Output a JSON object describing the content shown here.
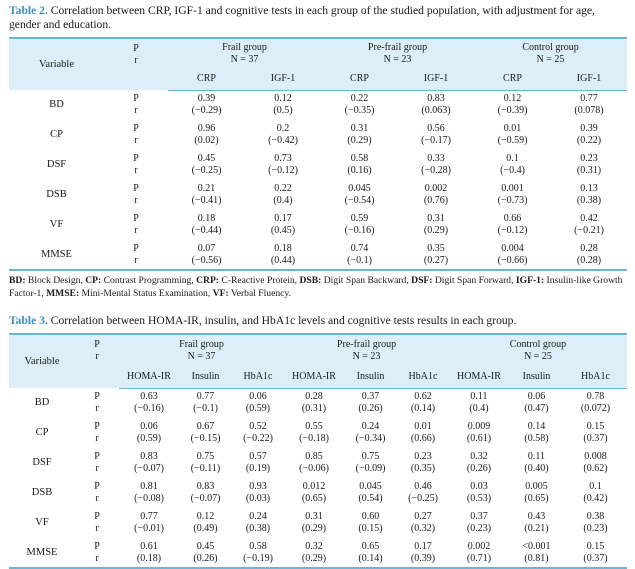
{
  "table2": {
    "label": "Table 2.",
    "caption": "Correlation between CRP, IGF-1 and cognitive tests in each group of the studied population, with adjustment for age, gender and education.",
    "variable_header": "Variable",
    "p_label": "P",
    "r_label": "r",
    "groups": [
      {
        "name": "Frail group",
        "n": "N = 37"
      },
      {
        "name": "Pre-frail group",
        "n": "N = 23"
      },
      {
        "name": "Control group",
        "n": "N = 25"
      }
    ],
    "measures": [
      "CRP",
      "IGF-1",
      "CRP",
      "IGF-1",
      "CRP",
      "IGF-1"
    ],
    "rows": [
      {
        "var": "BD",
        "p": [
          "0.39",
          "0.12",
          "0.22",
          "0.83",
          "0.12",
          "0.77"
        ],
        "r": [
          "(−0.29)",
          "(0.5)",
          "(−0.35)",
          "(0.063)",
          "(−0.39)",
          "(0.078)"
        ]
      },
      {
        "var": "CP",
        "p": [
          "0.96",
          "0.2",
          "0.31",
          "0.56",
          "0.01",
          "0.39"
        ],
        "r": [
          "(0.02)",
          "(−0.42)",
          "(0.29)",
          "(−0.17)",
          "(−0.59)",
          "(0.22)"
        ]
      },
      {
        "var": "DSF",
        "p": [
          "0.45",
          "0.73",
          "0.58",
          "0.33",
          "0.1",
          "0.23"
        ],
        "r": [
          "(−0.25)",
          "(−0.12)",
          "(0.16)",
          "(−0.28)",
          "(−0.4)",
          "(0.31)"
        ]
      },
      {
        "var": "DSB",
        "p": [
          "0.21",
          "0.22",
          "0.045",
          "0.002",
          "0.001",
          "0.13"
        ],
        "r": [
          "(−0.41)",
          "(0.4)",
          "(−0.54)",
          "(0.76)",
          "(−0.73)",
          "(0.38)"
        ]
      },
      {
        "var": "VF",
        "p": [
          "0.18",
          "0.17",
          "0.59",
          "0.31",
          "0.66",
          "0.42"
        ],
        "r": [
          "(−0.44)",
          "(0.45)",
          "(−0.16)",
          "(0.29)",
          "(−0.12)",
          "(−0.21)"
        ]
      },
      {
        "var": "MMSE",
        "p": [
          "0.07",
          "0.18",
          "0.74",
          "0.35",
          "0.004",
          "0.28"
        ],
        "r": [
          "(−0.56)",
          "(0.44)",
          "(−0.1)",
          "(0.27)",
          "(−0.66)",
          "(0.28)"
        ]
      }
    ],
    "footnote": [
      {
        "abbr": "BD:",
        "text": " Block Design, "
      },
      {
        "abbr": "CP:",
        "text": " Contrast Programming, "
      },
      {
        "abbr": "CRP:",
        "text": " C-Reactive Protein, "
      },
      {
        "abbr": "DSB:",
        "text": " Digit Span Backward, "
      },
      {
        "abbr": "DSF:",
        "text": " Digit Span Forward, "
      },
      {
        "abbr": "IGF-1:",
        "text": " Insulin-like Growth Factor-1, "
      },
      {
        "abbr": "MMSE:",
        "text": " Mini-Mental Status Examination, "
      },
      {
        "abbr": "VF:",
        "text": " Verbal Fluency."
      }
    ]
  },
  "table3": {
    "label": "Table 3.",
    "caption": "Correlation between HOMA-IR, insulin, and HbA1c levels and cognitive tests results in each group.",
    "variable_header": "Variable",
    "p_label": "P",
    "r_label": "r",
    "groups": [
      {
        "name": "Frail group",
        "n": "N = 37"
      },
      {
        "name": "Pre-frail group",
        "n": "N = 23"
      },
      {
        "name": "Control group",
        "n": "N = 25"
      }
    ],
    "measures": [
      "HOMA-IR",
      "Insulin",
      "HbA1c",
      "HOMA-IR",
      "Insulin",
      "HbA1c",
      "HOMA-IR",
      "Insulin",
      "HbA1c"
    ],
    "rows": [
      {
        "var": "BD",
        "p": [
          "0.63",
          "0.77",
          "0.06",
          "0.28",
          "0.37",
          "0.62",
          "0.11",
          "0.06",
          "0.78"
        ],
        "r": [
          "(−0.16)",
          "(−0.1)",
          "(0.59)",
          "(0.31)",
          "(0.26)",
          "(0.14)",
          "(0.4)",
          "(0.47)",
          "(0.072)"
        ]
      },
      {
        "var": "CP",
        "p": [
          "0.06",
          "0.67",
          "0.52",
          "0.55",
          "0.24",
          "0.01",
          "0.009",
          "0.14",
          "0.15"
        ],
        "r": [
          "(0.59)",
          "(−0.15)",
          "(−0.22)",
          "(−0.18)",
          "(−0.34)",
          "(0.66)",
          "(0.61)",
          "(0.58)",
          "(0.37)"
        ]
      },
      {
        "var": "DSF",
        "p": [
          "0.83",
          "0.75",
          "0.57",
          "0.85",
          "0.75",
          "0.23",
          "0.32",
          "0.11",
          "0.008"
        ],
        "r": [
          "(−0.07)",
          "(−0.11)",
          "(0.19)",
          "(−0.06)",
          "(−0.09)",
          "(0.35)",
          "(0.26)",
          "(0.40)",
          "(0.62)"
        ]
      },
      {
        "var": "DSB",
        "p": [
          "0.81",
          "0.83",
          "0.93",
          "0.012",
          "0.045",
          "0.46",
          "0.03",
          "0.005",
          "0.1"
        ],
        "r": [
          "(−0.08)",
          "(−0.07)",
          "(0.03)",
          "(0.65)",
          "(0.54)",
          "(−0.25)",
          "(0.53)",
          "(0.65)",
          "(0.42)"
        ]
      },
      {
        "var": "VF",
        "p": [
          "0.77",
          "0.12",
          "0.24",
          "0.31",
          "0.60",
          "0.27",
          "0.37",
          "0.43",
          "0.38"
        ],
        "r": [
          "(−0.01)",
          "(0.49)",
          "(0.38)",
          "(0.29)",
          "(0.15)",
          "(0.32)",
          "(0.23)",
          "(0.21)",
          "(0.23)"
        ]
      },
      {
        "var": "MMSE",
        "p": [
          "0.61",
          "0.45",
          "0.58",
          "0.32",
          "0.65",
          "0.17",
          "0.002",
          "<0.001",
          "0.15"
        ],
        "r": [
          "(0.18)",
          "(0.26)",
          "(−0.19)",
          "(0.29)",
          "(0.14)",
          "(0.39)",
          "(0.71)",
          "(0.81)",
          "(0.37)"
        ]
      }
    ]
  },
  "colors": {
    "accent": "#3f8fc4",
    "header_bg": "#dceef7",
    "rule": "#6cb3da"
  }
}
